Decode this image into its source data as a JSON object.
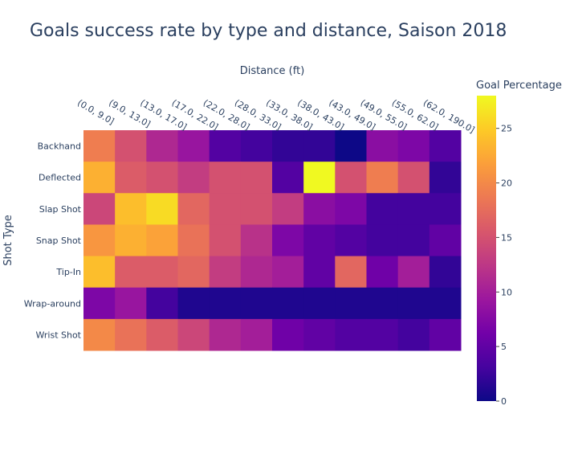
{
  "chart_data": {
    "type": "heatmap",
    "title": "Goals success rate by type and distance, Saison 2018",
    "xlabel": "Distance (ft)",
    "ylabel": "Shot Type",
    "x": [
      "(0.0, 9.0]",
      "(9.0, 13.0]",
      "(13.0, 17.0]",
      "(17.0, 22.0]",
      "(22.0, 28.0]",
      "(28.0, 33.0]",
      "(33.0, 38.0]",
      "(38.0, 43.0]",
      "(43.0, 49.0]",
      "(49.0, 55.0]",
      "(55.0, 62.0]",
      "(62.0, 190.0]"
    ],
    "y": [
      "Backhand",
      "Deflected",
      "Slap Shot",
      "Snap Shot",
      "Tip-In",
      "Wrap-around",
      "Wrist Shot"
    ],
    "z": [
      [
        19,
        15,
        11,
        9,
        4,
        3,
        2,
        2,
        0,
        8,
        7,
        4
      ],
      [
        23,
        16,
        15,
        13,
        15,
        15,
        4,
        28,
        15,
        19,
        15,
        2
      ],
      [
        14,
        24,
        26,
        17,
        15,
        15,
        13,
        8,
        7,
        3,
        3,
        3
      ],
      [
        21,
        23,
        22,
        18,
        15,
        12,
        7,
        5,
        4,
        3,
        3,
        5
      ],
      [
        24,
        16,
        16,
        17,
        13,
        11,
        10,
        5,
        17,
        6,
        10,
        2
      ],
      [
        7,
        9,
        3,
        1,
        1,
        1,
        1,
        1,
        1,
        1,
        1,
        1
      ],
      [
        20,
        18,
        16,
        14,
        11,
        10,
        6,
        5,
        4,
        4,
        3,
        5
      ]
    ],
    "colorbar": {
      "title": "Goal Percentage",
      "range": [
        0,
        28
      ],
      "ticks": [
        0,
        5,
        10,
        15,
        20,
        25
      ],
      "colorscale": "plasma"
    }
  }
}
